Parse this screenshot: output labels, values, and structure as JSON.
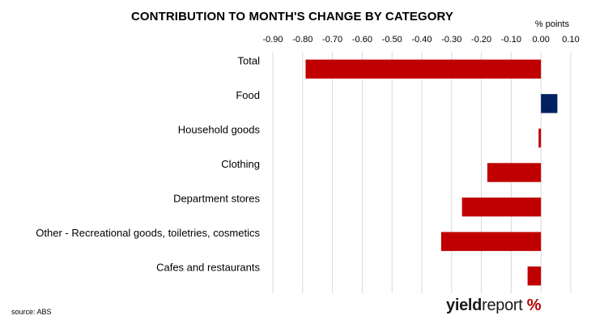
{
  "chart_data": {
    "type": "bar",
    "orientation": "horizontal",
    "title": "CONTRIBUTION TO MONTH'S CHANGE BY CATEGORY",
    "unit_label": "% points",
    "x_ticks": [
      "-0.90",
      "-0.80",
      "-0.70",
      "-0.60",
      "-0.50",
      "-0.40",
      "-0.30",
      "-0.20",
      "-0.10",
      "0.00",
      "0.10"
    ],
    "xlim": [
      -0.9,
      0.1
    ],
    "x_axis_position": "top",
    "grid": true,
    "categories": [
      "Total",
      "Food",
      "Household goods",
      "Clothing",
      "Department stores",
      "Other - Recreational goods, toiletries, cosmetics",
      "Cafes and restaurants"
    ],
    "values": [
      -0.79,
      0.055,
      -0.008,
      -0.18,
      -0.265,
      -0.335,
      -0.045
    ],
    "colors": {
      "negative": "#C00000",
      "positive": "#002060",
      "grid": "#D9D9D9"
    }
  },
  "footer": {
    "source": "source: ABS",
    "logo_yield": "yield",
    "logo_report": "report",
    "logo_pct": "%"
  }
}
